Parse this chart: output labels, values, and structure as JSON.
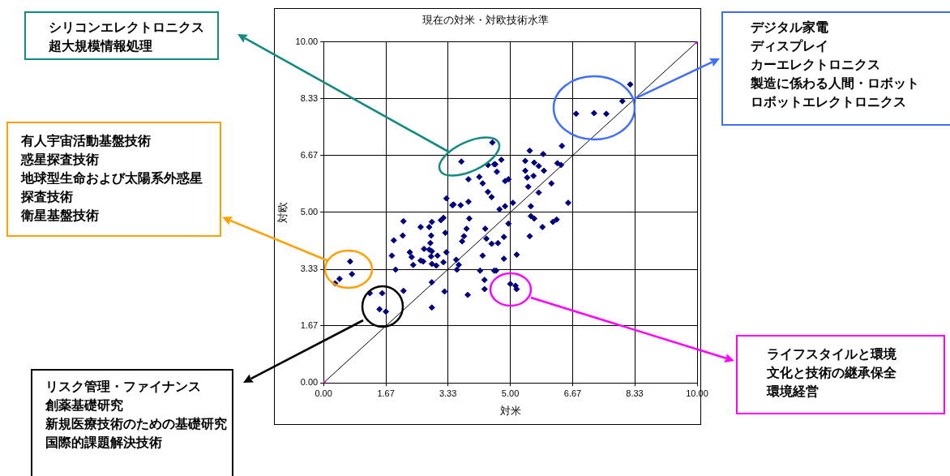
{
  "chart_data": {
    "type": "scatter",
    "title": "現在の対米・対欧技術水準",
    "xlabel": "対米",
    "ylabel": "対欧",
    "xlim": [
      0,
      10
    ],
    "ylim": [
      0,
      10
    ],
    "xticks": [
      {
        "value": 0,
        "label": "0.00"
      },
      {
        "value": 1.67,
        "label": "1.67"
      },
      {
        "value": 3.33,
        "label": "3.33"
      },
      {
        "value": 5,
        "label": "5.00"
      },
      {
        "value": 6.67,
        "label": "6.67"
      },
      {
        "value": 8.33,
        "label": "8.33"
      },
      {
        "value": 10,
        "label": "10.00"
      }
    ],
    "yticks": [
      {
        "value": 0,
        "label": "0.00"
      },
      {
        "value": 1.67,
        "label": "1.67"
      },
      {
        "value": 3.33,
        "label": "3.33"
      },
      {
        "value": 5,
        "label": "5.00"
      },
      {
        "value": 6.67,
        "label": "6.67"
      },
      {
        "value": 8.33,
        "label": "8.33"
      },
      {
        "value": 10,
        "label": "10.00"
      }
    ],
    "grid": true,
    "legend": false,
    "marker": "diamond",
    "series": [
      {
        "type": "scatter",
        "color": "#000080",
        "x": [
          6.76,
          7.24,
          7.57,
          8.0,
          8.21,
          4.52,
          3.69,
          0.31,
          0.43,
          0.76,
          0.71,
          1.24,
          1.57,
          1.5,
          1.67,
          5.0,
          5.14,
          5.17,
          2.14,
          1.88,
          2.12,
          1.83,
          1.93,
          2.14,
          2.9,
          2.9,
          3.24,
          3.86,
          2.31,
          2.36,
          2.4,
          2.6,
          2.83,
          2.9,
          2.88,
          2.86,
          2.69,
          2.83,
          2.9,
          2.88,
          3.05,
          2.6,
          2.67,
          2.9,
          3.02,
          3.21,
          3.29,
          3.26,
          3.14,
          3.21,
          3.48,
          3.67,
          3.88,
          3.55,
          3.62,
          3.57,
          3.9,
          3.83,
          3.76,
          3.71,
          4.26,
          4.19,
          4.31,
          4.31,
          4.33,
          4.36,
          4.5,
          4.67,
          4.57,
          4.62,
          4.83,
          4.83,
          4.71,
          5.52,
          5.88,
          6.38,
          5.4,
          5.64,
          5.76,
          5.9,
          6.26,
          6.36,
          5.4,
          5.45,
          5.62,
          5.48,
          6.1,
          5.76,
          6.55,
          5.55,
          5.07,
          4.86,
          4.57,
          4.76,
          4.64,
          4.86,
          4.95,
          4.5,
          3.88,
          4.17,
          4.26,
          4.4,
          3.29,
          3.45,
          4.4,
          4.6,
          5.55,
          5.64,
          5.86,
          6.14,
          6.24,
          4.95,
          5.52,
          5.17
        ],
        "values": [
          7.89,
          7.91,
          7.89,
          8.26,
          8.75,
          7.05,
          6.49,
          2.92,
          3.05,
          3.19,
          3.56,
          2.63,
          2.63,
          2.16,
          2.09,
          2.9,
          2.85,
          2.75,
          4.74,
          4.18,
          4.32,
          3.73,
          3.32,
          2.7,
          2.95,
          2.21,
          2.68,
          2.58,
          3.83,
          3.69,
          3.46,
          4.57,
          4.57,
          4.72,
          4.32,
          4.1,
          3.93,
          3.91,
          3.86,
          3.71,
          3.73,
          3.59,
          3.56,
          3.49,
          3.44,
          3.54,
          3.83,
          4.4,
          4.77,
          4.84,
          5.23,
          5.21,
          5.31,
          3.61,
          3.46,
          3.32,
          4.82,
          4.52,
          4.3,
          4.15,
          3.73,
          3.29,
          3.02,
          2.75,
          4.52,
          4.23,
          4.08,
          4.1,
          3.29,
          3.29,
          4.28,
          3.64,
          5.09,
          6.81,
          6.71,
          6.95,
          6.51,
          6.46,
          6.36,
          6.22,
          6.44,
          6.39,
          6.22,
          6.02,
          6.07,
          5.75,
          5.85,
          5.58,
          5.28,
          5.18,
          5.28,
          5.18,
          6.41,
          6.54,
          6.19,
          5.92,
          5.97,
          5.45,
          5.97,
          6.04,
          5.85,
          5.6,
          5.41,
          5.21,
          6.39,
          6.41,
          4.89,
          4.82,
          4.57,
          4.72,
          4.79,
          4.67,
          4.3,
          3.76
        ]
      },
      {
        "type": "line",
        "color": "#000000",
        "marker": "square",
        "colors": [
          "#ff00ff",
          "#ff00ff"
        ],
        "x": [
          0,
          10
        ],
        "values": [
          0,
          10
        ]
      }
    ],
    "annotations": [
      "シリコンエレクトロニクス",
      "超大規模情報処理",
      "有人宇宙活動基盤技術",
      "惑星探査技術",
      "地球型生命および太陽系外惑星探査技術",
      "衛星基盤技術",
      "リスク管理・ファイナンス",
      "創薬基礎研究",
      "新規医療技術のための基礎研究",
      "国際的課題解決技術",
      "デジタル家電",
      "ディスプレイ",
      "カーエレクトロニクス",
      "製造に係わる人間・ロボット",
      "ロボットエレクトロニクス",
      "ライフスタイルと環境",
      "文化と技術の継承保全",
      "環境経営"
    ]
  }
}
